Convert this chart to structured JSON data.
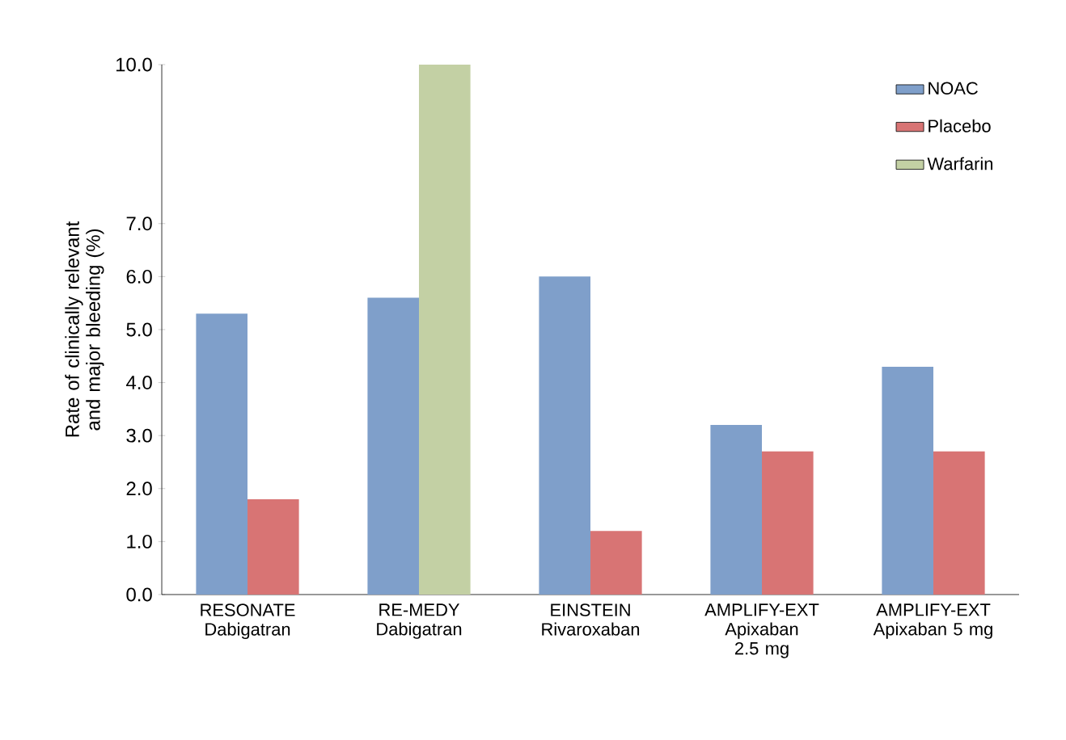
{
  "chart_data": {
    "type": "bar",
    "ylabel": "Rate of clinically relevant and major bleeding (%)",
    "categories": [
      "RESONATE Dabigatran",
      "RE-MEDY Dabigatran",
      "EINSTEIN Rivaroxaban",
      "AMPLIFY-EXT Apixaban 2.5 mg",
      "AMPLIFY-EXT Apixaban 5 mg"
    ],
    "series": [
      {
        "name": "NOAC",
        "color": "#7f9fca",
        "values": [
          5.3,
          5.6,
          6.0,
          3.2,
          4.3
        ]
      },
      {
        "name": "Placebo",
        "color": "#d87474",
        "values": [
          1.8,
          null,
          1.2,
          2.7,
          2.7
        ]
      },
      {
        "name": "Warfarin",
        "color": "#c3d0a4",
        "values": [
          null,
          10.0,
          null,
          null,
          null
        ]
      }
    ],
    "ylim": [
      0,
      10
    ],
    "yticks": [
      {
        "value": 0,
        "label": "0.0"
      },
      {
        "value": 1,
        "label": "1.0"
      },
      {
        "value": 2,
        "label": "2.0"
      },
      {
        "value": 3,
        "label": "3.0"
      },
      {
        "value": 4,
        "label": "4.0"
      },
      {
        "value": 5,
        "label": "5.0"
      },
      {
        "value": 6,
        "label": "6.0"
      },
      {
        "value": 7,
        "label": "7.0"
      },
      {
        "value": 10,
        "label": "10.0"
      }
    ],
    "grid": false,
    "legend": "top right"
  }
}
